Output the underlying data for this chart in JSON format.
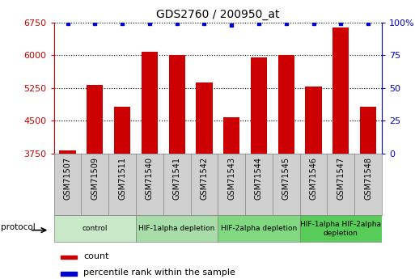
{
  "title": "GDS2760 / 200950_at",
  "samples": [
    "GSM71507",
    "GSM71509",
    "GSM71511",
    "GSM71540",
    "GSM71541",
    "GSM71542",
    "GSM71543",
    "GSM71544",
    "GSM71545",
    "GSM71546",
    "GSM71547",
    "GSM71548"
  ],
  "counts": [
    3820,
    5310,
    4820,
    6080,
    6010,
    5380,
    4580,
    5950,
    6010,
    5290,
    6640,
    4820
  ],
  "percentiles": [
    99,
    99,
    99,
    99,
    99,
    99,
    98,
    99,
    99,
    99,
    99,
    99
  ],
  "ylim": [
    3750,
    6750
  ],
  "yticks": [
    3750,
    4500,
    5250,
    6000,
    6750
  ],
  "right_yticks": [
    0,
    25,
    50,
    75,
    100
  ],
  "right_ylim": [
    0,
    100
  ],
  "bar_color": "#cc0000",
  "percentile_color": "#0000cc",
  "groups": [
    {
      "label": "control",
      "start": 0,
      "end": 3,
      "color": "#c8e8c8"
    },
    {
      "label": "HIF-1alpha depletion",
      "start": 3,
      "end": 6,
      "color": "#a8dca8"
    },
    {
      "label": "HIF-2alpha depletion",
      "start": 6,
      "end": 9,
      "color": "#80d880"
    },
    {
      "label": "HIF-1alpha HIF-2alpha\ndepletion",
      "start": 9,
      "end": 12,
      "color": "#58cc58"
    }
  ],
  "legend_count_label": "count",
  "legend_percentile_label": "percentile rank within the sample",
  "protocol_label": "protocol",
  "xtick_bg_color": "#d0d0d0"
}
